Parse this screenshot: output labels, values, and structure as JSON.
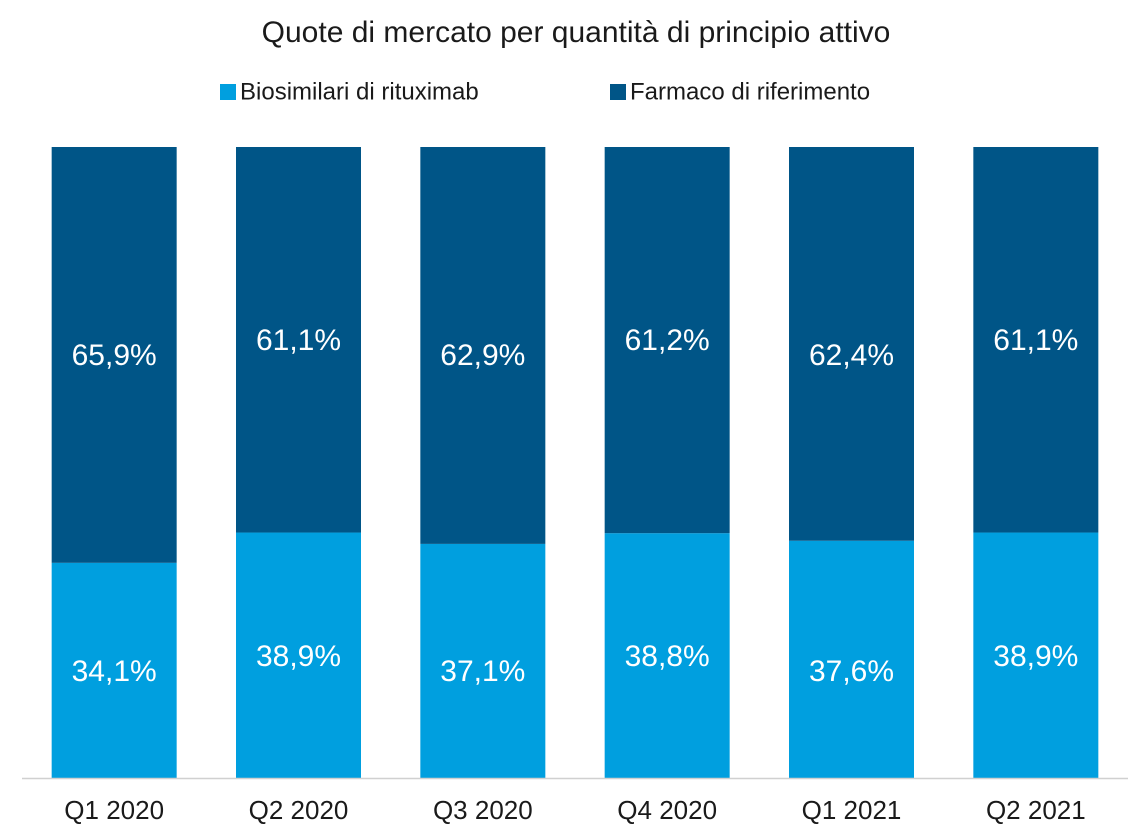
{
  "chart_data": {
    "type": "stacked_bar",
    "title": "Quote di mercato per quantità di principio attivo",
    "categories": [
      "Q1 2020",
      "Q2 2020",
      "Q3 2020",
      "Q4 2020",
      "Q1 2021",
      "Q2 2021"
    ],
    "series": [
      {
        "name": "Biosimilari di rituximab",
        "color": "#009fdf",
        "values": [
          34.1,
          38.9,
          37.1,
          38.8,
          37.6,
          38.9
        ],
        "value_labels": [
          "34,1%",
          "38,9%",
          "37,1%",
          "38,8%",
          "37,6%",
          "38,9%"
        ]
      },
      {
        "name": "Farmaco di riferimento",
        "color": "#005587",
        "values": [
          65.9,
          61.1,
          62.9,
          61.2,
          62.4,
          61.1
        ],
        "value_labels": [
          "65,9%",
          "61,1%",
          "62,9%",
          "61,2%",
          "62,4%",
          "61,1%"
        ]
      }
    ],
    "ylim": [
      0,
      100
    ],
    "legend": "top"
  }
}
